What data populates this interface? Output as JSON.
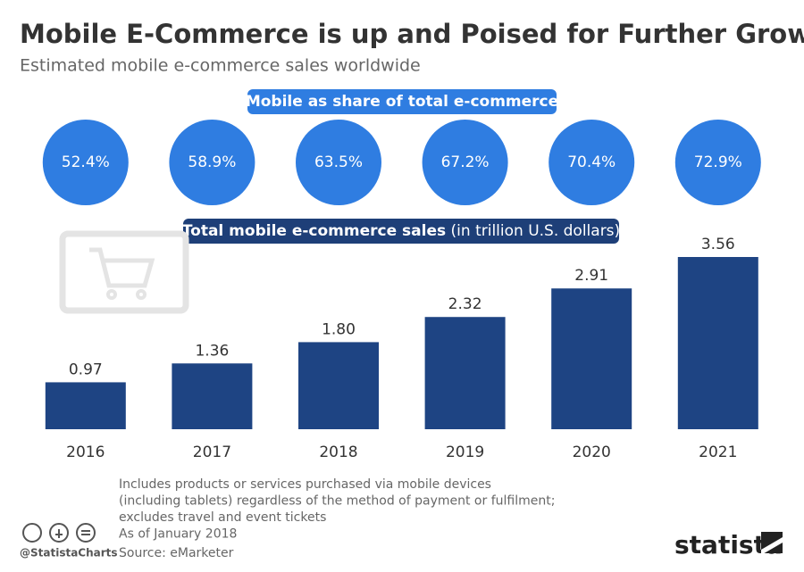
{
  "chart_data": {
    "type": "bar",
    "title": "Mobile E-Commerce is up and Poised for Further Growth",
    "subtitle": "Estimated mobile e-commerce sales worldwide",
    "share": {
      "title": "Mobile as share of total e-commerce",
      "values": [
        52.4,
        58.9,
        63.5,
        67.2,
        70.4,
        72.9
      ],
      "value_labels": [
        "52.4%",
        "58.9%",
        "63.5%",
        "67.2%",
        "70.4%",
        "72.9%"
      ],
      "color": "#2f7de1"
    },
    "sales_title": "Total mobile e-commerce sales",
    "sales_unit": "(in trillion U.S. dollars)",
    "categories": [
      "2016",
      "2017",
      "2018",
      "2019",
      "2020",
      "2021"
    ],
    "values": [
      0.97,
      1.36,
      1.8,
      2.32,
      2.91,
      3.56
    ],
    "value_labels": [
      "0.97",
      "1.36",
      "1.80",
      "2.32",
      "2.91",
      "3.56"
    ],
    "color": "#1e4483",
    "notes": [
      "Includes products or services purchased via mobile devices",
      "(including tablets) regardless of the method of payment or fulfilment;",
      "excludes travel and event tickets",
      "As of January 2018"
    ],
    "source": "Source: eMarketer",
    "credit": "@StatistaCharts",
    "brand": "statista"
  }
}
